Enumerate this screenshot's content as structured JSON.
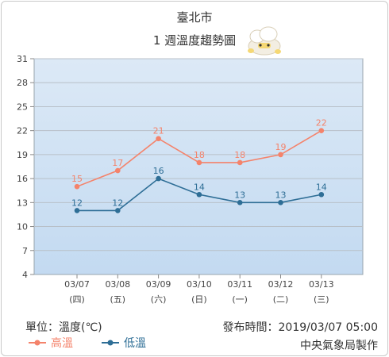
{
  "header": {
    "station": "臺北市",
    "subtitle": "1 週溫度趨勢圖",
    "mascot_icon": "cloud-mascot-icon"
  },
  "footer": {
    "unit": "單位：溫度(℃)",
    "issued": "發布時間：2019/03/07 05:00",
    "agency": "中央氣象局製作"
  },
  "colors": {
    "high": "#f4836b",
    "low": "#2e6e96",
    "plot_top": "#dce9f6",
    "plot_bottom": "#c3daf1",
    "grid": "#b8c0c8"
  },
  "chart_data": {
    "type": "line",
    "categories": [
      "03/07",
      "03/08",
      "03/09",
      "03/10",
      "03/11",
      "03/12",
      "03/13"
    ],
    "weekdays": [
      "(四)",
      "(五)",
      "(六)",
      "(日)",
      "(一)",
      "(二)",
      "(三)"
    ],
    "series": [
      {
        "name": "高溫",
        "color": "#f4836b",
        "values": [
          15,
          17,
          21,
          18,
          18,
          19,
          22
        ]
      },
      {
        "name": "低溫",
        "color": "#2e6e96",
        "values": [
          12,
          12,
          16,
          14,
          13,
          13,
          14
        ]
      }
    ],
    "ylim": [
      4,
      31
    ],
    "yticks": [
      4,
      7,
      10,
      13,
      16,
      19,
      22,
      25,
      28,
      31
    ],
    "grid": true,
    "legend": "bottom-left"
  }
}
